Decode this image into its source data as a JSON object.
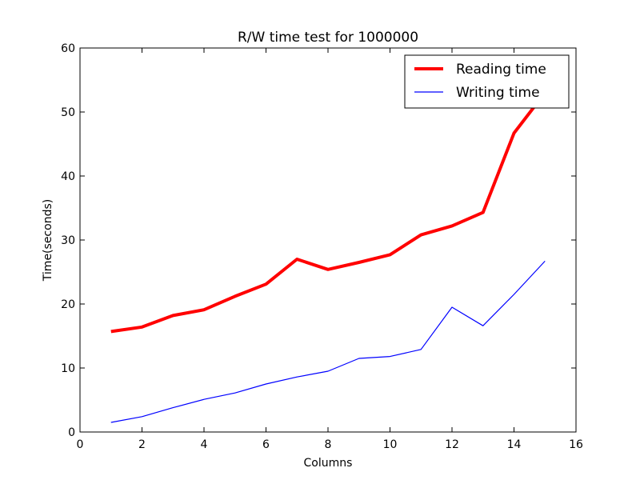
{
  "chart_data": {
    "type": "line",
    "title": "R/W time test for 1000000",
    "xlabel": "Columns",
    "ylabel": "Time(seconds)",
    "xlim": [
      0,
      16
    ],
    "ylim": [
      0,
      60
    ],
    "xticks": [
      0,
      2,
      4,
      6,
      8,
      10,
      12,
      14,
      16
    ],
    "yticks": [
      0,
      10,
      20,
      30,
      40,
      50,
      60
    ],
    "grid": false,
    "legend_position": "top-right",
    "x": [
      1,
      2,
      3,
      4,
      5,
      6,
      7,
      8,
      9,
      10,
      11,
      12,
      13,
      14,
      15
    ],
    "series": [
      {
        "name": "Reading time",
        "color": "#ff0000",
        "values": [
          15.7,
          16.4,
          18.2,
          19.1,
          21.2,
          23.1,
          27.0,
          25.4,
          26.5,
          27.7,
          30.8,
          32.2,
          34.3,
          46.7,
          53.0
        ]
      },
      {
        "name": "Writing time",
        "color": "#0000ff",
        "values": [
          1.5,
          2.4,
          3.8,
          5.1,
          6.1,
          7.5,
          8.6,
          9.5,
          11.5,
          11.8,
          12.9,
          19.5,
          16.6,
          21.5,
          26.7
        ]
      }
    ]
  }
}
